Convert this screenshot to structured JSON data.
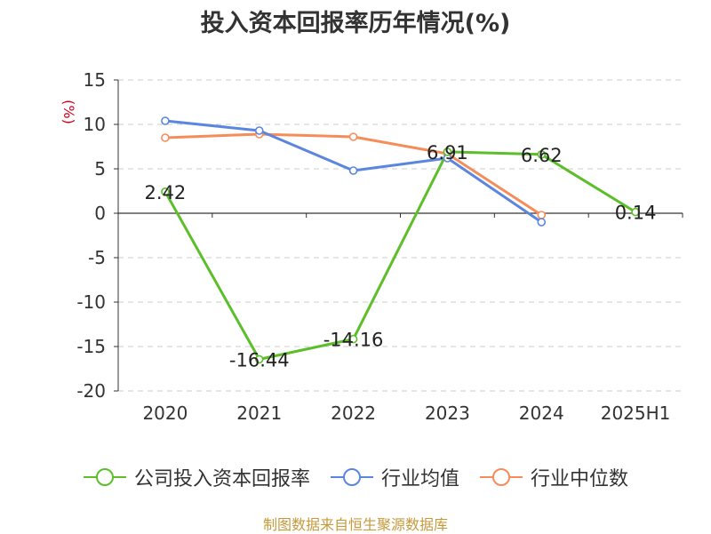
{
  "title": "投入资本回报率历年情况(%)",
  "source": "制图数据来自恒生聚源数据库",
  "colors": {
    "company": "#5cbf2a",
    "industry_avg": "#5b86df",
    "industry_median": "#f68c5a",
    "axis_unit": "#d0021b",
    "grid": "#cccccc",
    "source": "#c69a3c"
  },
  "chart_data": {
    "type": "line",
    "title": "投入资本回报率历年情况(%)",
    "ylabel": "(%)",
    "xlabel": "",
    "ylim": [
      -20,
      15
    ],
    "yticks": [
      15,
      10,
      5,
      0,
      -5,
      -10,
      -15,
      -20
    ],
    "categories": [
      "2020",
      "2021",
      "2022",
      "2023",
      "2024",
      "2025H1"
    ],
    "grid": "horizontal dashed",
    "legend_position": "bottom",
    "series": [
      {
        "name": "公司投入资本回报率",
        "color": "#5cbf2a",
        "values": [
          2.42,
          -16.44,
          -14.16,
          6.91,
          6.62,
          0.14
        ],
        "labels": [
          "2.42",
          "-16.44",
          "-14.16",
          "6.91",
          "6.62",
          "0.14"
        ]
      },
      {
        "name": "行业均值",
        "color": "#5b86df",
        "values": [
          10.4,
          9.3,
          4.8,
          6.2,
          -1.0,
          null
        ]
      },
      {
        "name": "行业中位数",
        "color": "#f68c5a",
        "values": [
          8.5,
          8.9,
          8.6,
          6.7,
          -0.2,
          null
        ]
      }
    ]
  }
}
